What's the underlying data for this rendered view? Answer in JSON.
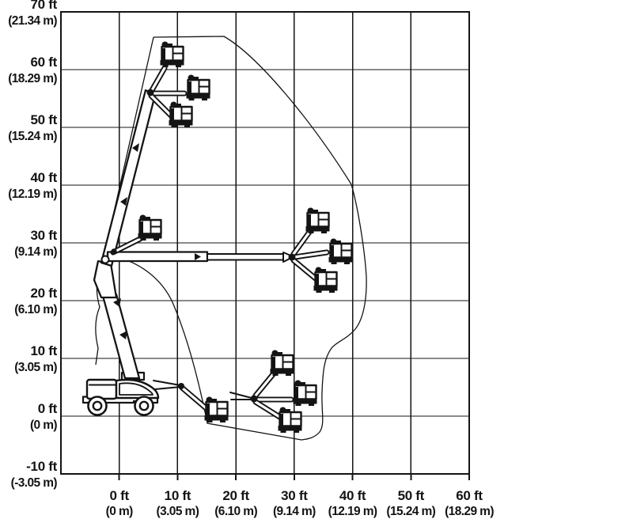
{
  "figure": {
    "ink_color": "#141414",
    "background_color": "#ffffff"
  },
  "chart_data": {
    "type": "range-of-motion-diagram",
    "grid": true,
    "x_axis": {
      "range_ft": [
        -10,
        60
      ],
      "step_ft": 10,
      "ticks": [
        {
          "value": 0,
          "ft": "0 ft",
          "m": "(0 m)"
        },
        {
          "value": 10,
          "ft": "10 ft",
          "m": "(3.05 m)"
        },
        {
          "value": 20,
          "ft": "20 ft",
          "m": "(6.10 m)"
        },
        {
          "value": 30,
          "ft": "30 ft",
          "m": "(9.14 m)"
        },
        {
          "value": 40,
          "ft": "40 ft",
          "m": "(12.19 m)"
        },
        {
          "value": 50,
          "ft": "50 ft",
          "m": "(15.24 m)"
        },
        {
          "value": 60,
          "ft": "60 ft",
          "m": "(18.29 m)"
        }
      ]
    },
    "y_axis": {
      "range_ft": [
        -10,
        70
      ],
      "step_ft": 10,
      "ticks": [
        {
          "value": 70,
          "ft": "70 ft",
          "m": "(21.34 m)"
        },
        {
          "value": 60,
          "ft": "60 ft",
          "m": "(18.29 m)"
        },
        {
          "value": 50,
          "ft": "50 ft",
          "m": "(15.24 m)"
        },
        {
          "value": 40,
          "ft": "40 ft",
          "m": "(12.19 m)"
        },
        {
          "value": 30,
          "ft": "30 ft",
          "m": "(9.14 m)"
        },
        {
          "value": 20,
          "ft": "20 ft",
          "m": "(6.10 m)"
        },
        {
          "value": 10,
          "ft": "10 ft",
          "m": "(3.05 m)"
        },
        {
          "value": 0,
          "ft": "0 ft",
          "m": "(0 m)"
        },
        {
          "value": -10,
          "ft": "-10 ft",
          "m": "(-3.05 m)"
        }
      ]
    }
  }
}
